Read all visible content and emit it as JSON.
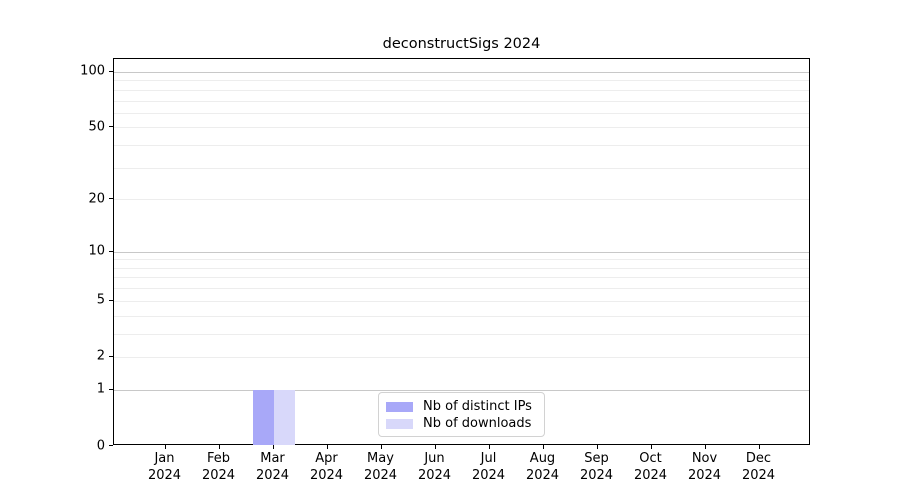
{
  "chart_data": {
    "type": "bar",
    "title": "deconstructSigs 2024",
    "xlabel": "",
    "ylabel": "",
    "x_categories": [
      "Jan",
      "Feb",
      "Mar",
      "Apr",
      "May",
      "Jun",
      "Jul",
      "Aug",
      "Sep",
      "Oct",
      "Nov",
      "Dec"
    ],
    "x_year_label": "2024",
    "yscale": "log10(1+y)",
    "ylim": [
      0,
      117.5
    ],
    "yticks": [
      0,
      1,
      2,
      5,
      10,
      20,
      50,
      100
    ],
    "grid_major": [
      1,
      10,
      100
    ],
    "grid_minor": [
      2,
      3,
      4,
      5,
      6,
      7,
      8,
      9,
      20,
      30,
      40,
      50,
      60,
      70,
      80,
      90
    ],
    "grid_on": true,
    "legend_position": "inside-bottom-center",
    "series": [
      {
        "name": "Nb of distinct IPs",
        "color": "#a8a8f8",
        "values": [
          0,
          0,
          1,
          0,
          0,
          0,
          0,
          0,
          0,
          0,
          0,
          0
        ]
      },
      {
        "name": "Nb of downloads",
        "color": "#d8d8fa",
        "values": [
          0,
          0,
          1,
          0,
          0,
          0,
          0,
          0,
          0,
          0,
          0,
          0
        ]
      }
    ],
    "colors": {
      "grid_major": "#c8c8c8",
      "grid_minor": "#ededed",
      "spine": "#000000",
      "text": "#000000",
      "legend_border": "#d2d2d2"
    }
  }
}
